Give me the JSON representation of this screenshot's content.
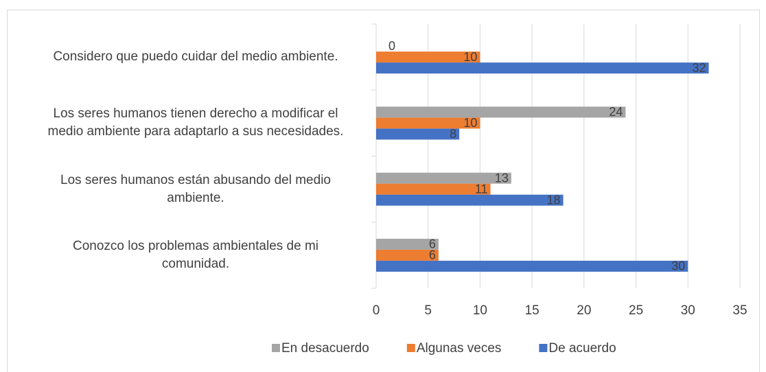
{
  "chart_data": {
    "type": "hbar",
    "categories": [
      "Considero que puedo cuidar del medio ambiente.",
      "Los seres humanos tienen derecho a modificar el\nmedio ambiente para adaptarlo a sus necesidades.",
      "Los seres humanos están abusando del medio\nambiente.",
      "Conozco los problemas ambientales de mi\ncomunidad."
    ],
    "series": [
      {
        "name": "En desacuerdo",
        "color": "#a5a5a5",
        "values": [
          0,
          24,
          13,
          6
        ]
      },
      {
        "name": "Algunas veces",
        "color": "#ed7d31",
        "values": [
          10,
          10,
          11,
          6
        ]
      },
      {
        "name": "De acuerdo",
        "color": "#4472c4",
        "values": [
          32,
          8,
          18,
          30
        ]
      }
    ],
    "xlim": [
      0,
      35
    ],
    "xticks": [
      0,
      5,
      10,
      15,
      20,
      25,
      30,
      35
    ],
    "grid": true,
    "legend": "bottom"
  }
}
